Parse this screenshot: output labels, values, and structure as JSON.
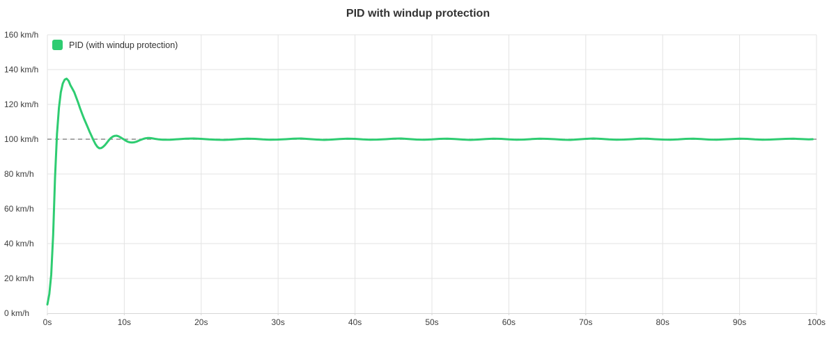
{
  "chart": {
    "title": "PID with windup protection",
    "legend_label": "PID (with windup protection)"
  },
  "colors": {
    "series_green": "#2ecc71",
    "grid": "#e3e3e3",
    "axis": "#d6d6d6",
    "setpoint_dash": "#8a8a8a",
    "text": "#333333"
  },
  "chart_data": {
    "type": "line",
    "title": "PID with windup protection",
    "xlabel": "",
    "ylabel": "",
    "x_unit": "s",
    "y_unit": "km/h",
    "xlim": [
      0,
      100
    ],
    "ylim": [
      0,
      160
    ],
    "x_tick_step": 10,
    "y_tick_step": 20,
    "x_tick_labels": [
      "0s",
      "10s",
      "20s",
      "30s",
      "40s",
      "50s",
      "60s",
      "70s",
      "80s",
      "90s",
      "100s"
    ],
    "y_tick_labels": [
      "0 km/h",
      "20 km/h",
      "40 km/h",
      "60 km/h",
      "80 km/h",
      "100 km/h",
      "120 km/h",
      "140 km/h",
      "160 km/h"
    ],
    "grid": true,
    "legend_position": "top-left",
    "setpoint": {
      "value": 100,
      "style": "dashed",
      "color": "#8a8a8a"
    },
    "series": [
      {
        "name": "PID (with windup protection)",
        "color": "#2ecc71",
        "points": [
          [
            0,
            5
          ],
          [
            0.25,
            11
          ],
          [
            0.5,
            22
          ],
          [
            0.75,
            45
          ],
          [
            1,
            78
          ],
          [
            1.25,
            103
          ],
          [
            1.5,
            118
          ],
          [
            1.75,
            127
          ],
          [
            2,
            132
          ],
          [
            2.25,
            134.2
          ],
          [
            2.5,
            134.8
          ],
          [
            2.75,
            133.6
          ],
          [
            3,
            131
          ],
          [
            3.25,
            129
          ],
          [
            3.5,
            127
          ],
          [
            3.75,
            124
          ],
          [
            4,
            121
          ],
          [
            4.25,
            117.8
          ],
          [
            4.5,
            114.8
          ],
          [
            4.75,
            112
          ],
          [
            5,
            109.4
          ],
          [
            5.25,
            106.8
          ],
          [
            5.5,
            104.2
          ],
          [
            5.75,
            101.8
          ],
          [
            6,
            99.4
          ],
          [
            6.25,
            97.2
          ],
          [
            6.5,
            95.6
          ],
          [
            6.75,
            94.8
          ],
          [
            7,
            94.9
          ],
          [
            7.25,
            95.6
          ],
          [
            7.5,
            96.7
          ],
          [
            7.75,
            98.1
          ],
          [
            8,
            99.5
          ],
          [
            8.25,
            100.7
          ],
          [
            8.5,
            101.5
          ],
          [
            8.75,
            101.9
          ],
          [
            9,
            102
          ],
          [
            9.25,
            101.7
          ],
          [
            9.5,
            101.1
          ],
          [
            9.75,
            100.4
          ],
          [
            10,
            99.7
          ],
          [
            10.25,
            99
          ],
          [
            10.5,
            98.5
          ],
          [
            10.75,
            98.2
          ],
          [
            11,
            98.1
          ],
          [
            11.25,
            98.2
          ],
          [
            11.5,
            98.5
          ],
          [
            11.75,
            98.9
          ],
          [
            12,
            99.4
          ],
          [
            12.25,
            99.8
          ],
          [
            12.5,
            100.2
          ],
          [
            12.75,
            100.5
          ],
          [
            13,
            100.7
          ],
          [
            13.25,
            100.7
          ],
          [
            13.5,
            100.6
          ],
          [
            13.75,
            100.4
          ],
          [
            14,
            100.2
          ],
          [
            14.5,
            99.9
          ],
          [
            15,
            99.7
          ],
          [
            16,
            99.7
          ],
          [
            17,
            100
          ],
          [
            18,
            100.3
          ],
          [
            19,
            100.4
          ],
          [
            20,
            100.2
          ],
          [
            21,
            99.9
          ],
          [
            22,
            99.7
          ],
          [
            23,
            99.6
          ],
          [
            24,
            99.8
          ],
          [
            25,
            100.1
          ],
          [
            26,
            100.3
          ],
          [
            27,
            100.2
          ],
          [
            28,
            99.9
          ],
          [
            29,
            99.7
          ],
          [
            30,
            99.8
          ],
          [
            31,
            100
          ],
          [
            32,
            100.3
          ],
          [
            33,
            100.4
          ],
          [
            34,
            100.1
          ],
          [
            35,
            99.8
          ],
          [
            36,
            99.6
          ],
          [
            37,
            99.8
          ],
          [
            38,
            100.1
          ],
          [
            39,
            100.3
          ],
          [
            40,
            100.2
          ],
          [
            41,
            99.9
          ],
          [
            42,
            99.7
          ],
          [
            43,
            99.8
          ],
          [
            44,
            100
          ],
          [
            45,
            100.3
          ],
          [
            46,
            100.4
          ],
          [
            47,
            100.1
          ],
          [
            48,
            99.8
          ],
          [
            49,
            99.7
          ],
          [
            50,
            99.9
          ],
          [
            51,
            100.2
          ],
          [
            52,
            100.3
          ],
          [
            53,
            100.1
          ],
          [
            54,
            99.8
          ],
          [
            55,
            99.6
          ],
          [
            56,
            99.8
          ],
          [
            57,
            100.1
          ],
          [
            58,
            100.3
          ],
          [
            59,
            100.2
          ],
          [
            60,
            99.9
          ],
          [
            61,
            99.7
          ],
          [
            62,
            99.8
          ],
          [
            63,
            100.1
          ],
          [
            64,
            100.3
          ],
          [
            65,
            100.2
          ],
          [
            66,
            100
          ],
          [
            67,
            99.7
          ],
          [
            68,
            99.6
          ],
          [
            69,
            99.9
          ],
          [
            70,
            100.2
          ],
          [
            71,
            100.4
          ],
          [
            72,
            100.2
          ],
          [
            73,
            99.9
          ],
          [
            74,
            99.7
          ],
          [
            75,
            99.8
          ],
          [
            76,
            100
          ],
          [
            77,
            100.3
          ],
          [
            78,
            100.3
          ],
          [
            79,
            100
          ],
          [
            80,
            99.8
          ],
          [
            81,
            99.7
          ],
          [
            82,
            99.9
          ],
          [
            83,
            100.2
          ],
          [
            84,
            100.3
          ],
          [
            85,
            100.1
          ],
          [
            86,
            99.8
          ],
          [
            87,
            99.7
          ],
          [
            88,
            99.9
          ],
          [
            89,
            100.1
          ],
          [
            90,
            100.3
          ],
          [
            91,
            100.2
          ],
          [
            92,
            99.9
          ],
          [
            93,
            99.7
          ],
          [
            94,
            99.8
          ],
          [
            95,
            100
          ],
          [
            96,
            100.2
          ],
          [
            97,
            100.3
          ],
          [
            98,
            100.1
          ],
          [
            99,
            99.9
          ],
          [
            99.5,
            100
          ]
        ]
      }
    ]
  }
}
